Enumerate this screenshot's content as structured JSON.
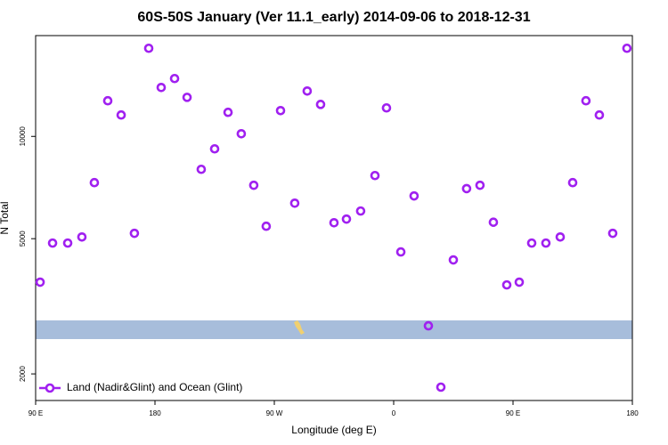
{
  "chart_data": {
    "type": "scatter",
    "title": "60S-50S January (Ver 11.1_early)   2014-09-06 to 2018-12-31",
    "xlabel": "Longitude (deg E)",
    "ylabel": "N Total",
    "ylog": true,
    "xlim": [
      90,
      540
    ],
    "ylim": [
      1670,
      19800
    ],
    "xticks": [
      {
        "value": 90,
        "label": "90 E"
      },
      {
        "value": 180,
        "label": "180"
      },
      {
        "value": 270,
        "label": "90 W"
      },
      {
        "value": 360,
        "label": "0"
      },
      {
        "value": 450,
        "label": "90 E"
      },
      {
        "value": 540,
        "label": "180"
      }
    ],
    "yticks": [
      2000,
      5000,
      10000
    ],
    "legend": "bottom-left",
    "x": [
      93.4,
      102.8,
      114.2,
      124.9,
      134.3,
      144.4,
      154.5,
      164.5,
      175.3,
      184.7,
      194.8,
      204.2,
      214.9,
      225,
      235.1,
      245.1,
      254.5,
      263.9,
      274.7,
      285.4,
      294.8,
      304.9,
      315,
      324.4,
      335.1,
      345.9,
      354.6,
      365.4,
      375.4,
      386.2,
      395.6,
      405,
      415,
      425.1,
      435.2,
      445.3,
      454.7,
      464.1,
      474.8,
      485.6,
      495,
      505,
      515.1,
      525.2,
      535.9
    ],
    "series": [
      {
        "name": "Land (Nadir&Glint) and Ocean (Glint)",
        "color": "#a020f0",
        "values": [
          3724,
          4853,
          4853,
          5058,
          7310,
          12730,
          11560,
          5185,
          18170,
          13930,
          14800,
          13030,
          8000,
          9190,
          11770,
          10180,
          7180,
          5440,
          11910,
          6360,
          13600,
          12420,
          5570,
          5710,
          6030,
          7670,
          12130,
          4570,
          6680,
          2770,
          1828,
          4330,
          7020,
          7180,
          5590,
          3655,
          3724,
          4853,
          4853,
          5058,
          7310,
          12730,
          11560,
          5185,
          18170
        ]
      }
    ]
  }
}
